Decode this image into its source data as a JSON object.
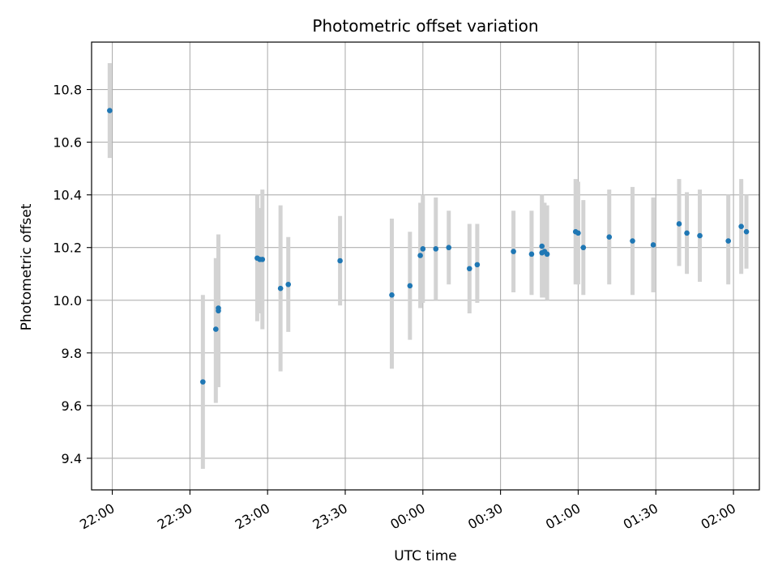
{
  "chart_data": {
    "type": "scatter",
    "title": "Photometric offset variation",
    "xlabel": "UTC time",
    "ylabel": "Photometric offset",
    "x_tick_labels": [
      "22:00",
      "22:30",
      "23:00",
      "23:30",
      "00:00",
      "00:30",
      "01:00",
      "01:30",
      "02:00"
    ],
    "y_tick_labels": [
      "9.4",
      "9.6",
      "9.8",
      "10.0",
      "10.2",
      "10.4",
      "10.6",
      "10.8"
    ],
    "xlim": [
      "21:52",
      "02:10"
    ],
    "ylim": [
      9.28,
      10.98
    ],
    "grid": true,
    "colors": {
      "point": "#1f77b4",
      "errorbar": "#d3d3d3",
      "grid": "#b0b0b0"
    },
    "series": [
      {
        "points": [
          {
            "x": "21:59",
            "y": 10.72,
            "ymin": 10.54,
            "ymax": 10.9
          },
          {
            "x": "22:35",
            "y": 9.69,
            "ymin": 9.36,
            "ymax": 10.02
          },
          {
            "x": "22:40",
            "y": 9.89,
            "ymin": 9.61,
            "ymax": 10.16
          },
          {
            "x": "22:41",
            "y": 9.96,
            "ymin": 9.67,
            "ymax": 10.25
          },
          {
            "x": "22:41",
            "y": 9.97,
            "ymin": 9.72,
            "ymax": 10.2
          },
          {
            "x": "22:56",
            "y": 10.16,
            "ymin": 9.92,
            "ymax": 10.4
          },
          {
            "x": "22:57",
            "y": 10.155,
            "ymin": 9.95,
            "ymax": 10.35
          },
          {
            "x": "22:58",
            "y": 10.155,
            "ymin": 9.89,
            "ymax": 10.42
          },
          {
            "x": "23:05",
            "y": 10.045,
            "ymin": 9.73,
            "ymax": 10.36
          },
          {
            "x": "23:08",
            "y": 10.06,
            "ymin": 9.88,
            "ymax": 10.24
          },
          {
            "x": "23:28",
            "y": 10.15,
            "ymin": 9.98,
            "ymax": 10.32
          },
          {
            "x": "23:48",
            "y": 10.02,
            "ymin": 9.74,
            "ymax": 10.31
          },
          {
            "x": "23:55",
            "y": 10.055,
            "ymin": 9.85,
            "ymax": 10.26
          },
          {
            "x": "23:59",
            "y": 10.17,
            "ymin": 9.97,
            "ymax": 10.37
          },
          {
            "x": "00:00",
            "y": 10.195,
            "ymin": 9.99,
            "ymax": 10.4
          },
          {
            "x": "00:05",
            "y": 10.195,
            "ymin": 10.0,
            "ymax": 10.39
          },
          {
            "x": "00:10",
            "y": 10.2,
            "ymin": 10.06,
            "ymax": 10.34
          },
          {
            "x": "00:18",
            "y": 10.12,
            "ymin": 9.95,
            "ymax": 10.29
          },
          {
            "x": "00:21",
            "y": 10.135,
            "ymin": 9.99,
            "ymax": 10.29
          },
          {
            "x": "00:35",
            "y": 10.185,
            "ymin": 10.03,
            "ymax": 10.34
          },
          {
            "x": "00:42",
            "y": 10.175,
            "ymin": 10.02,
            "ymax": 10.34
          },
          {
            "x": "00:46",
            "y": 10.205,
            "ymin": 10.02,
            "ymax": 10.4
          },
          {
            "x": "00:46",
            "y": 10.18,
            "ymin": 10.01,
            "ymax": 10.38
          },
          {
            "x": "00:47",
            "y": 10.185,
            "ymin": 10.01,
            "ymax": 10.37
          },
          {
            "x": "00:48",
            "y": 10.175,
            "ymin": 10.0,
            "ymax": 10.36
          },
          {
            "x": "00:59",
            "y": 10.26,
            "ymin": 10.06,
            "ymax": 10.46
          },
          {
            "x": "01:00",
            "y": 10.255,
            "ymin": 10.06,
            "ymax": 10.45
          },
          {
            "x": "01:02",
            "y": 10.2,
            "ymin": 10.02,
            "ymax": 10.38
          },
          {
            "x": "01:12",
            "y": 10.24,
            "ymin": 10.06,
            "ymax": 10.42
          },
          {
            "x": "01:21",
            "y": 10.225,
            "ymin": 10.02,
            "ymax": 10.43
          },
          {
            "x": "01:29",
            "y": 10.21,
            "ymin": 10.03,
            "ymax": 10.39
          },
          {
            "x": "01:39",
            "y": 10.29,
            "ymin": 10.13,
            "ymax": 10.46
          },
          {
            "x": "01:42",
            "y": 10.255,
            "ymin": 10.1,
            "ymax": 10.41
          },
          {
            "x": "01:47",
            "y": 10.245,
            "ymin": 10.07,
            "ymax": 10.42
          },
          {
            "x": "01:58",
            "y": 10.225,
            "ymin": 10.06,
            "ymax": 10.4
          },
          {
            "x": "02:03",
            "y": 10.28,
            "ymin": 10.1,
            "ymax": 10.46
          },
          {
            "x": "02:05",
            "y": 10.26,
            "ymin": 10.12,
            "ymax": 10.4
          }
        ]
      }
    ]
  }
}
